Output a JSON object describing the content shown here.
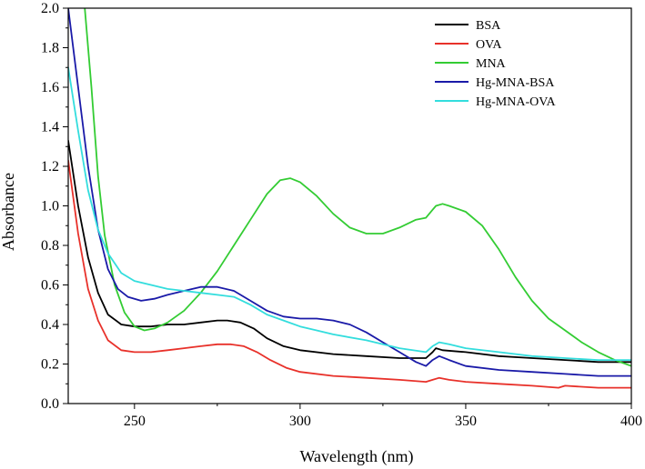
{
  "chart_data": {
    "type": "line",
    "title": "",
    "xlabel": "Wavelength (nm)",
    "ylabel": "Absorbance",
    "xlim": [
      230,
      400
    ],
    "ylim": [
      0.0,
      2.0
    ],
    "xticks": [
      250,
      300,
      350,
      400
    ],
    "xtick_labels": [
      "250",
      "300",
      "350",
      "400"
    ],
    "yticks": [
      0.0,
      0.2,
      0.4,
      0.6,
      0.8,
      1.0,
      1.2,
      1.4,
      1.6,
      1.8,
      2.0
    ],
    "ytick_labels": [
      "0.0",
      "0.2",
      "0.4",
      "0.6",
      "0.8",
      "1.0",
      "1.2",
      "1.4",
      "1.6",
      "1.8",
      "2.0"
    ],
    "legend_position": "top-right",
    "grid": false,
    "series": [
      {
        "name": "BSA",
        "color": "#000000",
        "points": [
          [
            230,
            1.33
          ],
          [
            233,
            1.0
          ],
          [
            236,
            0.74
          ],
          [
            239,
            0.56
          ],
          [
            242,
            0.45
          ],
          [
            246,
            0.4
          ],
          [
            250,
            0.39
          ],
          [
            255,
            0.39
          ],
          [
            260,
            0.4
          ],
          [
            265,
            0.4
          ],
          [
            270,
            0.41
          ],
          [
            275,
            0.42
          ],
          [
            278,
            0.42
          ],
          [
            282,
            0.41
          ],
          [
            286,
            0.38
          ],
          [
            290,
            0.33
          ],
          [
            295,
            0.29
          ],
          [
            300,
            0.27
          ],
          [
            310,
            0.25
          ],
          [
            320,
            0.24
          ],
          [
            330,
            0.23
          ],
          [
            338,
            0.23
          ],
          [
            340,
            0.26
          ],
          [
            341,
            0.28
          ],
          [
            343,
            0.27
          ],
          [
            350,
            0.26
          ],
          [
            360,
            0.24
          ],
          [
            370,
            0.23
          ],
          [
            380,
            0.22
          ],
          [
            390,
            0.21
          ],
          [
            400,
            0.21
          ]
        ]
      },
      {
        "name": "OVA",
        "color": "#e8312a",
        "points": [
          [
            230,
            1.23
          ],
          [
            233,
            0.86
          ],
          [
            236,
            0.58
          ],
          [
            239,
            0.42
          ],
          [
            242,
            0.32
          ],
          [
            246,
            0.27
          ],
          [
            250,
            0.26
          ],
          [
            255,
            0.26
          ],
          [
            260,
            0.27
          ],
          [
            265,
            0.28
          ],
          [
            270,
            0.29
          ],
          [
            275,
            0.3
          ],
          [
            279,
            0.3
          ],
          [
            283,
            0.29
          ],
          [
            287,
            0.26
          ],
          [
            291,
            0.22
          ],
          [
            296,
            0.18
          ],
          [
            300,
            0.16
          ],
          [
            310,
            0.14
          ],
          [
            320,
            0.13
          ],
          [
            330,
            0.12
          ],
          [
            338,
            0.11
          ],
          [
            340,
            0.12
          ],
          [
            342,
            0.13
          ],
          [
            345,
            0.12
          ],
          [
            350,
            0.11
          ],
          [
            360,
            0.1
          ],
          [
            370,
            0.09
          ],
          [
            378,
            0.08
          ],
          [
            380,
            0.09
          ],
          [
            390,
            0.08
          ],
          [
            400,
            0.08
          ]
        ]
      },
      {
        "name": "MNA",
        "color": "#33cc33",
        "points": [
          [
            235,
            2.0
          ],
          [
            237,
            1.6
          ],
          [
            239,
            1.15
          ],
          [
            241,
            0.85
          ],
          [
            244,
            0.6
          ],
          [
            247,
            0.46
          ],
          [
            250,
            0.39
          ],
          [
            253,
            0.37
          ],
          [
            256,
            0.38
          ],
          [
            260,
            0.41
          ],
          [
            265,
            0.47
          ],
          [
            270,
            0.56
          ],
          [
            275,
            0.67
          ],
          [
            280,
            0.8
          ],
          [
            285,
            0.93
          ],
          [
            290,
            1.06
          ],
          [
            294,
            1.13
          ],
          [
            297,
            1.14
          ],
          [
            300,
            1.12
          ],
          [
            305,
            1.05
          ],
          [
            310,
            0.96
          ],
          [
            315,
            0.89
          ],
          [
            320,
            0.86
          ],
          [
            325,
            0.86
          ],
          [
            330,
            0.89
          ],
          [
            335,
            0.93
          ],
          [
            338,
            0.94
          ],
          [
            340,
            0.98
          ],
          [
            341,
            1.0
          ],
          [
            343,
            1.01
          ],
          [
            345,
            1.0
          ],
          [
            350,
            0.97
          ],
          [
            355,
            0.9
          ],
          [
            360,
            0.78
          ],
          [
            365,
            0.64
          ],
          [
            370,
            0.52
          ],
          [
            375,
            0.43
          ],
          [
            380,
            0.37
          ],
          [
            385,
            0.31
          ],
          [
            390,
            0.26
          ],
          [
            395,
            0.22
          ],
          [
            400,
            0.19
          ]
        ]
      },
      {
        "name": "Hg-MNA-BSA",
        "color": "#1a1aa8",
        "points": [
          [
            230,
            2.0
          ],
          [
            233,
            1.6
          ],
          [
            236,
            1.2
          ],
          [
            239,
            0.88
          ],
          [
            242,
            0.68
          ],
          [
            245,
            0.58
          ],
          [
            248,
            0.54
          ],
          [
            252,
            0.52
          ],
          [
            256,
            0.53
          ],
          [
            260,
            0.55
          ],
          [
            265,
            0.57
          ],
          [
            270,
            0.59
          ],
          [
            275,
            0.59
          ],
          [
            280,
            0.57
          ],
          [
            285,
            0.52
          ],
          [
            290,
            0.47
          ],
          [
            295,
            0.44
          ],
          [
            300,
            0.43
          ],
          [
            305,
            0.43
          ],
          [
            310,
            0.42
          ],
          [
            315,
            0.4
          ],
          [
            320,
            0.36
          ],
          [
            325,
            0.31
          ],
          [
            330,
            0.26
          ],
          [
            335,
            0.21
          ],
          [
            338,
            0.19
          ],
          [
            340,
            0.22
          ],
          [
            342,
            0.24
          ],
          [
            345,
            0.22
          ],
          [
            350,
            0.19
          ],
          [
            360,
            0.17
          ],
          [
            370,
            0.16
          ],
          [
            380,
            0.15
          ],
          [
            390,
            0.14
          ],
          [
            400,
            0.14
          ]
        ]
      },
      {
        "name": "Hg-MNA-OVA",
        "color": "#33dddd",
        "points": [
          [
            230,
            1.7
          ],
          [
            233,
            1.38
          ],
          [
            236,
            1.08
          ],
          [
            239,
            0.88
          ],
          [
            242,
            0.76
          ],
          [
            246,
            0.66
          ],
          [
            250,
            0.62
          ],
          [
            255,
            0.6
          ],
          [
            260,
            0.58
          ],
          [
            265,
            0.57
          ],
          [
            270,
            0.56
          ],
          [
            275,
            0.55
          ],
          [
            280,
            0.54
          ],
          [
            285,
            0.5
          ],
          [
            290,
            0.45
          ],
          [
            295,
            0.42
          ],
          [
            300,
            0.39
          ],
          [
            305,
            0.37
          ],
          [
            310,
            0.35
          ],
          [
            320,
            0.32
          ],
          [
            330,
            0.28
          ],
          [
            338,
            0.26
          ],
          [
            340,
            0.29
          ],
          [
            342,
            0.31
          ],
          [
            345,
            0.3
          ],
          [
            350,
            0.28
          ],
          [
            360,
            0.26
          ],
          [
            370,
            0.24
          ],
          [
            380,
            0.23
          ],
          [
            390,
            0.22
          ],
          [
            400,
            0.22
          ]
        ]
      }
    ]
  }
}
